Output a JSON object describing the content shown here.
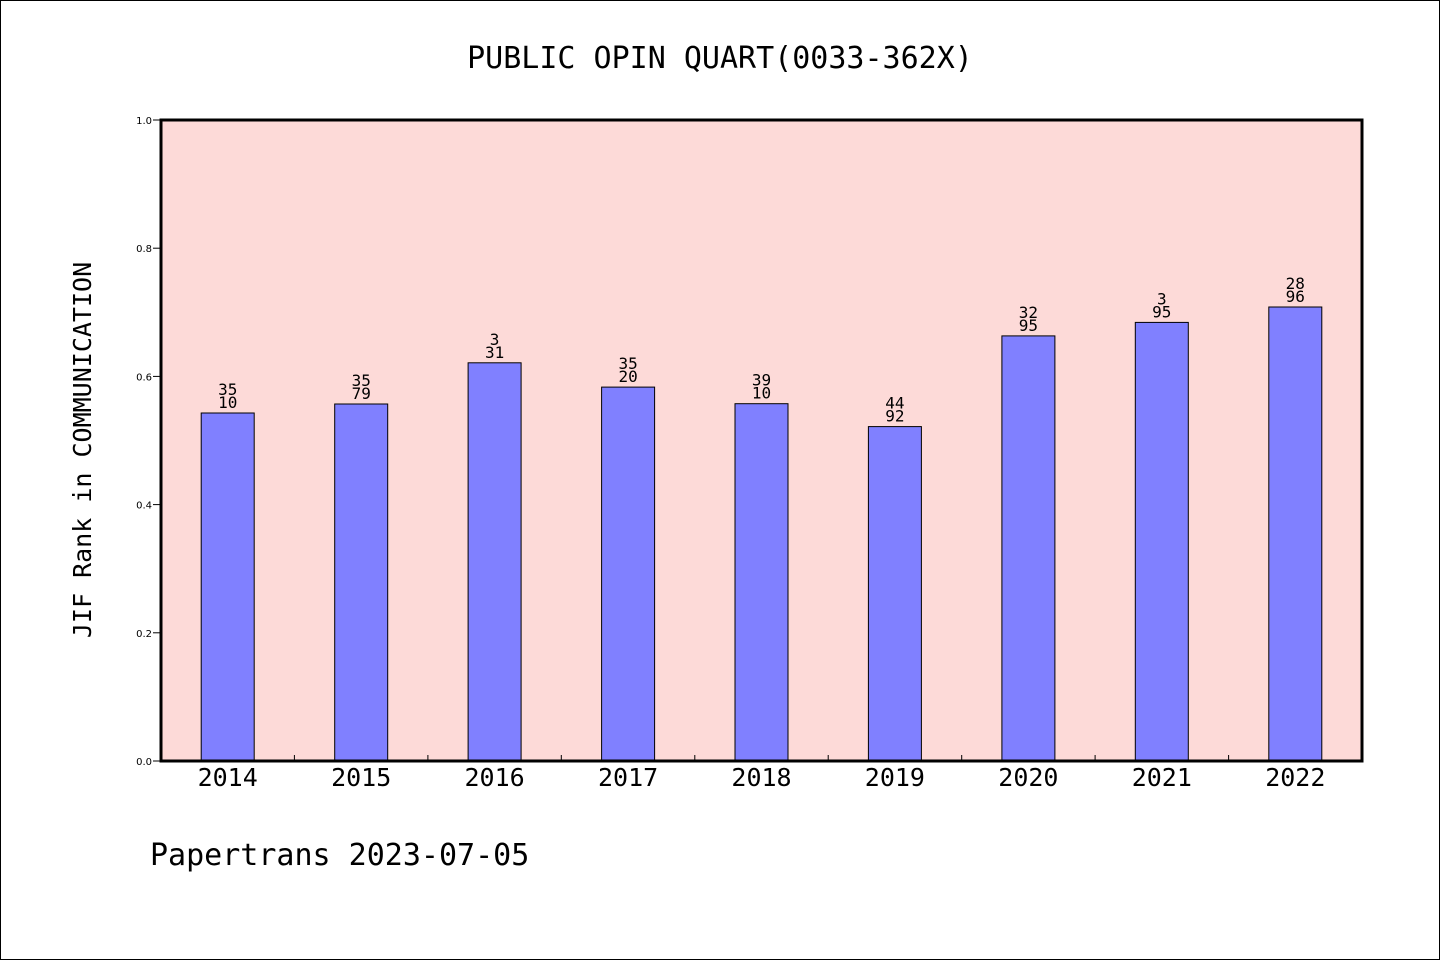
{
  "chart_data": {
    "type": "bar",
    "title": "PUBLIC OPIN QUART(0033-362X)",
    "xlabel": "",
    "ylabel": "JIF Rank in COMMUNICATION",
    "ylim": [
      0,
      1.0
    ],
    "yticks": [
      "0.0",
      "0.2",
      "0.4",
      "0.6",
      "0.8",
      "1.0"
    ],
    "categories": [
      "2014",
      "2015",
      "2016",
      "2017",
      "2018",
      "2019",
      "2020",
      "2021",
      "2022"
    ],
    "values": [
      0.5429,
      0.557,
      0.6212,
      0.5833,
      0.5574,
      0.5217,
      0.6632,
      0.6842,
      0.7083
    ],
    "bar_labels": [
      [
        "35",
        "10"
      ],
      [
        "35",
        "79"
      ],
      [
        "3",
        "31"
      ],
      [
        "35",
        "20"
      ],
      [
        "39",
        "10"
      ],
      [
        "44",
        "92"
      ],
      [
        "32",
        "95"
      ],
      [
        "3",
        "95"
      ],
      [
        "28",
        "96"
      ]
    ],
    "grid": false,
    "legend": "none",
    "colors": {
      "plot_background": "#fddad8",
      "bar_fill": "#8080ff",
      "bar_stroke": "#000000",
      "axis": "#000000"
    }
  },
  "footer": {
    "text": "Papertrans 2023-07-05"
  }
}
